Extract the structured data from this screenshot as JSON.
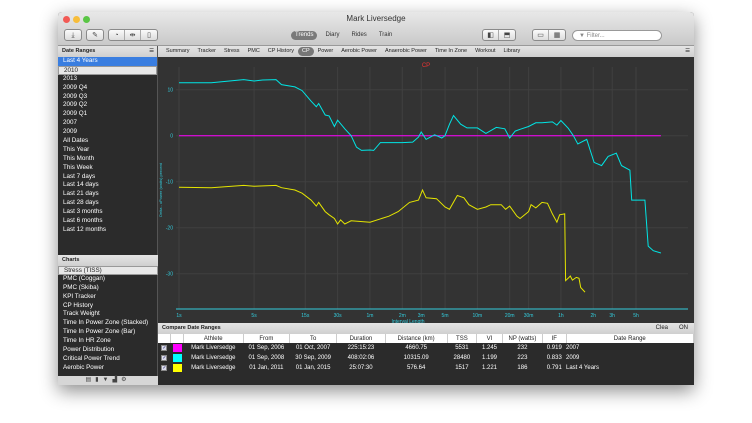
{
  "window": {
    "title": "Mark Liversedge"
  },
  "toolbar": {
    "icons": [
      "download-icon",
      "compose-icon",
      "stopwatch-icon",
      "split-icon",
      "trash-icon"
    ],
    "views": [
      "Trends",
      "Diary",
      "Rides",
      "Train"
    ],
    "active_view": "Trends",
    "filter_placeholder": "Filter..."
  },
  "tabs": [
    "Summary",
    "Tracker",
    "Stress",
    "PMC",
    "CP History",
    "CP",
    "Power",
    "Aerobic Power",
    "Anaerobic Power",
    "Time In Zone",
    "Workout",
    "Library"
  ],
  "active_tab": "CP",
  "sidebar": {
    "date_ranges_title": "Date Ranges",
    "date_ranges": [
      "Last 4 Years",
      "2010",
      "2013",
      "2009 Q4",
      "2009 Q3",
      "2009 Q2",
      "2009 Q1",
      "2007",
      "2009",
      "All Dates",
      "This Year",
      "This Month",
      "This Week",
      "Last 7 days",
      "Last 14 days",
      "Last 21 days",
      "Last 28 days",
      "Last 3 months",
      "Last 6 months",
      "Last 12 months"
    ],
    "charts_title": "Charts",
    "charts": [
      "Stress (TISS)",
      "PMC (Coggan)",
      "PMC (Skiba)",
      "KPI Tracker",
      "CP History",
      "Track Weight",
      "Time In Power Zone (Stacked)",
      "Time In Power Zone (Bar)",
      "Time In HR Zone",
      "Power Distribution",
      "Critical Power Trend",
      "Aerobic Power"
    ]
  },
  "chart_data": {
    "type": "line",
    "title": "CP",
    "xlabel": "Interval Length",
    "ylabel": "Delta - xPower (watts) percent",
    "x_scale": "log",
    "x_ticks": [
      [
        1,
        "1s"
      ],
      [
        5,
        "5s"
      ],
      [
        15,
        "15s"
      ],
      [
        30,
        "30s"
      ],
      [
        60,
        "1m"
      ],
      [
        120,
        "2m"
      ],
      [
        180,
        "3m"
      ],
      [
        300,
        "5m"
      ],
      [
        600,
        "10m"
      ],
      [
        1200,
        "20m"
      ],
      [
        1800,
        "30m"
      ],
      [
        3600,
        "1h"
      ],
      [
        7200,
        "2h"
      ],
      [
        10800,
        "3h"
      ],
      [
        18000,
        "5h"
      ]
    ],
    "y_ticks": [
      10,
      0,
      -10,
      -20,
      -30
    ],
    "ylim": [
      -38,
      14
    ],
    "grid": true,
    "series": [
      {
        "name": "2007",
        "color": "#ff00ff",
        "x": [
          1,
          30700
        ],
        "y": [
          0,
          0
        ]
      },
      {
        "name": "2009",
        "color": "#00e5e5",
        "x": [
          1,
          2,
          4,
          5,
          6,
          8,
          9,
          12,
          14,
          17,
          19,
          20,
          23,
          25,
          28,
          30,
          35,
          40,
          45,
          50,
          60,
          65,
          75,
          90,
          120,
          150,
          170,
          180,
          200,
          240,
          280,
          300,
          330,
          360,
          420,
          480,
          600,
          720,
          900,
          1080,
          1200,
          1350,
          1500,
          1800,
          2100,
          2400,
          3000,
          3300,
          3600,
          4220,
          4700,
          5170,
          6250,
          7330,
          8600,
          9900,
          11800,
          13200,
          15800,
          16400,
          21800,
          23400,
          26100,
          30700
        ],
        "y": [
          11.5,
          11.5,
          12.2,
          11.9,
          12.1,
          12.2,
          11.1,
          10.6,
          9.8,
          7.5,
          6.3,
          7.0,
          4.5,
          4.3,
          2.0,
          3.4,
          1.5,
          0,
          -2.5,
          -3.2,
          -3.1,
          -3.2,
          -1.5,
          -1.5,
          -1.5,
          -1.4,
          -0.3,
          0.8,
          -0.8,
          0.2,
          -0.5,
          0,
          2.5,
          4.4,
          2.5,
          1.7,
          1.7,
          0.5,
          1.8,
          1.5,
          -0.5,
          1.0,
          1.4,
          2.0,
          2.8,
          2.8,
          3.0,
          2.3,
          3.3,
          1.6,
          0,
          -1.8,
          -0.8,
          -5.8,
          -6.5,
          -4.5,
          -3.8,
          -6.5,
          -7.5,
          -14,
          -14,
          -24,
          -25,
          -25.5
        ]
      },
      {
        "name": "Last 4 Years",
        "color": "#e5e500",
        "x": [
          1,
          2,
          4,
          5,
          8,
          9,
          12,
          14,
          17,
          19,
          20,
          23,
          25,
          28,
          30,
          32,
          35,
          40,
          60,
          90,
          110,
          140,
          170,
          185,
          200,
          250,
          300,
          330,
          390,
          450,
          500,
          600,
          720,
          800,
          1000,
          1100,
          1200,
          1400,
          1500,
          1800,
          1900,
          2100,
          2400,
          2700,
          3000,
          3300,
          3500,
          3900,
          3980,
          4200,
          4400,
          4600,
          5000,
          5300,
          5500,
          6030
        ],
        "y": [
          -11.2,
          -11.3,
          -10.8,
          -11,
          -10.8,
          -11.3,
          -11.8,
          -12.5,
          -14,
          -15.3,
          -14.5,
          -16.5,
          -17.2,
          -18,
          -19.2,
          -18.3,
          -19.2,
          -18.5,
          -18.8,
          -17.5,
          -16.5,
          -14.5,
          -14,
          -11.8,
          -13.5,
          -13.7,
          -15.5,
          -16,
          -13,
          -13.5,
          -15,
          -16,
          -15.5,
          -15,
          -15,
          -16,
          -15.3,
          -17.5,
          -18,
          -16.5,
          -15,
          -15.7,
          -14.5,
          -14.7,
          -17,
          -18.8,
          -17.2,
          -17,
          -31.5,
          -31,
          -30.5,
          -31.4,
          -30.8,
          -31,
          -33,
          -34
        ]
      }
    ]
  },
  "compare": {
    "title": "Compare Date Ranges",
    "clear_label": "Clea",
    "on_label": "ON",
    "columns": [
      "",
      "",
      "Athlete",
      "From",
      "To",
      "Duration",
      "Distance (km)",
      "TSS",
      "VI",
      "NP (watts)",
      "IF",
      "Date Range"
    ],
    "rows": [
      {
        "checked": true,
        "color": "#ff00ff",
        "cells": [
          "Mark Liversedge",
          "01 Sep, 2006",
          "01 Oct, 2007",
          "225:15:23",
          "4660.75",
          "5531",
          "1.245",
          "232",
          "0.919",
          "2007"
        ]
      },
      {
        "checked": true,
        "color": "#00ffff",
        "cells": [
          "Mark Liversedge",
          "01 Sep, 2008",
          "30 Sep, 2009",
          "408:02:06",
          "10315.09",
          "28480",
          "1.199",
          "223",
          "0.833",
          "2009"
        ]
      },
      {
        "checked": true,
        "color": "#ffff00",
        "cells": [
          "Mark Liversedge",
          "01 Jan, 2011",
          "01 Jan, 2015",
          "25:07:30",
          "576.64",
          "1517",
          "1.221",
          "186",
          "0.791",
          "Last 4 Years"
        ]
      }
    ]
  }
}
